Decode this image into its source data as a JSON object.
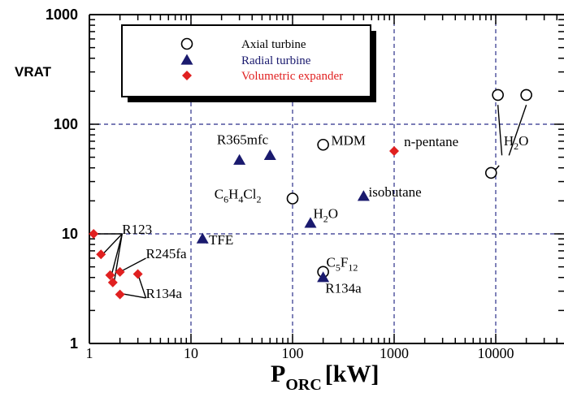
{
  "chart_data": {
    "type": "scatter",
    "ylabel": "VRAT",
    "xlabel_main": "P",
    "xlabel_sub": "ORC",
    "xlabel_unit": "[kW]",
    "xscale": "log",
    "yscale": "log",
    "xlim": [
      1,
      45000
    ],
    "ylim": [
      1,
      1000
    ],
    "x_ticks": [
      {
        "value": 1,
        "label": "1"
      },
      {
        "value": 10,
        "label": "10"
      },
      {
        "value": 100,
        "label": "100"
      },
      {
        "value": 1000,
        "label": "1000"
      },
      {
        "value": 10000,
        "label": "10000"
      }
    ],
    "y_ticks": [
      {
        "value": 1,
        "label": "1"
      },
      {
        "value": 10,
        "label": "10"
      },
      {
        "value": 100,
        "label": "100"
      },
      {
        "value": 1000,
        "label": "1000"
      }
    ],
    "grid": "dashed at decades",
    "legend_position": "top-left",
    "legend": [
      {
        "name": "Axial turbine",
        "marker": "open-circle",
        "color": "#000000"
      },
      {
        "name": "Radial turbine",
        "marker": "filled-triangle",
        "color": "#1a1a6e"
      },
      {
        "name": "Volumetric expander",
        "marker": "filled-diamond",
        "color": "#e02020"
      }
    ],
    "series": [
      {
        "name": "Axial turbine",
        "points": [
          {
            "x": 200,
            "y": 65
          },
          {
            "x": 100,
            "y": 21
          },
          {
            "x": 200,
            "y": 4.5
          },
          {
            "x": 9000,
            "y": 36
          },
          {
            "x": 10500,
            "y": 185
          },
          {
            "x": 20000,
            "y": 185
          }
        ]
      },
      {
        "name": "Radial turbine",
        "points": [
          {
            "x": 30,
            "y": 47
          },
          {
            "x": 60,
            "y": 52
          },
          {
            "x": 500,
            "y": 22
          },
          {
            "x": 150,
            "y": 12.5
          },
          {
            "x": 13,
            "y": 9
          },
          {
            "x": 200,
            "y": 4
          }
        ]
      },
      {
        "name": "Volumetric expander",
        "points": [
          {
            "x": 1000,
            "y": 57
          },
          {
            "x": 1.1,
            "y": 10
          },
          {
            "x": 1.3,
            "y": 6.5
          },
          {
            "x": 1.6,
            "y": 4.2
          },
          {
            "x": 1.7,
            "y": 3.6
          },
          {
            "x": 2.0,
            "y": 4.5
          },
          {
            "x": 3.0,
            "y": 4.3
          },
          {
            "x": 2.0,
            "y": 2.8
          }
        ]
      }
    ],
    "annotations": [
      {
        "id": "r365mfc",
        "text": "R365mfc",
        "x": 18,
        "y": 66
      },
      {
        "id": "mdm",
        "text": "MDM",
        "x": 240,
        "y": 65
      },
      {
        "id": "npentane",
        "text": "n-pentane",
        "x": 1250,
        "y": 63
      },
      {
        "id": "c6h4cl2",
        "base": [
          "C",
          "H",
          "Cl"
        ],
        "subs": [
          "6",
          "4",
          "2"
        ],
        "x": 17,
        "y": 21
      },
      {
        "id": "isobutane",
        "text": "isobutane",
        "x": 560,
        "y": 22
      },
      {
        "id": "h2o_radial",
        "base": [
          "H",
          "O"
        ],
        "subs": [
          "2",
          ""
        ],
        "x": 160,
        "y": 14
      },
      {
        "id": "c5f12",
        "base": [
          "C",
          "F"
        ],
        "subs": [
          "5",
          "12"
        ],
        "x": 215,
        "y": 5
      },
      {
        "id": "r134a_radial",
        "text": "R134a",
        "x": 210,
        "y": 2.9
      },
      {
        "id": "tfe",
        "text": "TFE",
        "x": 15,
        "y": 8
      },
      {
        "id": "r123",
        "text": "R123",
        "x": 2.1,
        "y": 10
      },
      {
        "id": "r245fa",
        "text": "R245fa",
        "x": 3.6,
        "y": 6
      },
      {
        "id": "r134a_vol",
        "text": "R134a",
        "x": 3.6,
        "y": 2.6
      },
      {
        "id": "h2o_axial",
        "base": [
          "H",
          "O"
        ],
        "subs": [
          "2",
          ""
        ],
        "x": 12000,
        "y": 64
      }
    ]
  }
}
